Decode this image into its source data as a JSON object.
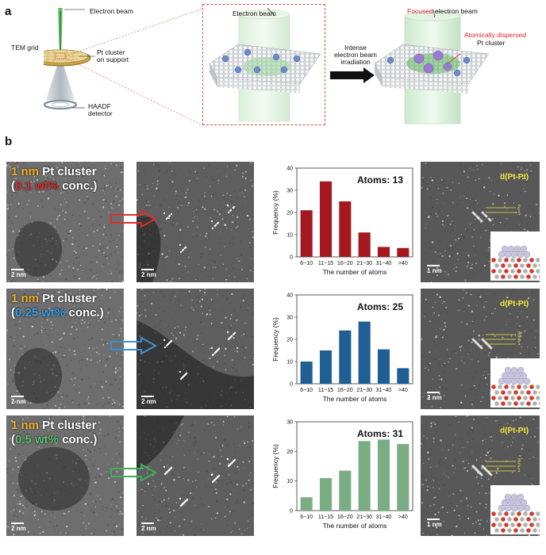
{
  "panel_a": {
    "letter": "a",
    "labels": {
      "electron_beam_left": "Electron beam",
      "tem_grid": "TEM grid",
      "pt_cluster_support": "Pt cluster\non support",
      "haadf_detector": "HAADF\ndetector",
      "electron_beam_mid": "Electron beam",
      "irradiation": "Intense\nelectron beam\nirradiation",
      "focused_word": "Focused",
      "focused_rest": " electron beam",
      "atomically_dispersed": "Atomically dispersed",
      "pt_cluster_right": "Pt cluster"
    },
    "colors": {
      "red_text": "#e0252b",
      "beam_green": "#5fb85f"
    }
  },
  "panel_b": {
    "letter": "b",
    "rows": [
      {
        "size_text": "1 nm",
        "cluster_word": " Pt cluster",
        "conc_open": "(",
        "conc_value": "0.1 wt%",
        "conc_close": " conc.)",
        "conc_color": "#d8302e",
        "arrow_color": "#d8302e",
        "scale_left": "2 nm",
        "scale_mid": "2 nm",
        "scale_right": "1 nm",
        "dpt_label": "d(Pt-Pt)",
        "layers": [
          "2",
          "1"
        ],
        "bar_color": "#a41820"
      },
      {
        "size_text": "1 nm",
        "cluster_word": " Pt cluster",
        "conc_open": "(",
        "conc_value": "0.25 wt%",
        "conc_close": " conc.)",
        "conc_color": "#3a9fe0",
        "arrow_color": "#3a8fd8",
        "scale_left": "2 nm",
        "scale_mid": "2 nm",
        "scale_right": "2 nm",
        "dpt_label": "d(Pt-Pt)",
        "layers": [
          "3",
          "2",
          "1"
        ],
        "bar_color": "#1f5f93"
      },
      {
        "size_text": "1 nm",
        "cluster_word": " Pt cluster",
        "conc_open": "(",
        "conc_value": "0.5 wt%",
        "conc_close": " conc.)",
        "conc_color": "#5cc070",
        "arrow_color": "#3fae5a",
        "scale_left": "2 nm",
        "scale_mid": "2 nm",
        "scale_right": "1 nm",
        "dpt_label": "d(Pt-Pt)",
        "layers": [
          "3",
          "2",
          "1"
        ],
        "bar_color": "#7aad84"
      }
    ],
    "size_color": "#f2b02a"
  },
  "chart_data": [
    {
      "type": "bar",
      "title": "Atoms: 13",
      "categories": [
        "6~10",
        "11~15",
        "16~20",
        "21~30",
        "31~40",
        ">40"
      ],
      "values": [
        21,
        34,
        25,
        11,
        4.5,
        4
      ],
      "xlabel": "The number of atoms",
      "ylabel": "Frequency (%)",
      "ylim": [
        0,
        40
      ],
      "yticks": [
        0,
        10,
        20,
        30,
        40
      ]
    },
    {
      "type": "bar",
      "title": "Atoms: 25",
      "categories": [
        "6~10",
        "11~15",
        "16~20",
        "21~30",
        "31~40",
        ">40"
      ],
      "values": [
        10,
        15,
        24,
        28,
        15.5,
        7
      ],
      "xlabel": "The number of atoms",
      "ylabel": "Frequency (%)",
      "ylim": [
        0,
        40
      ],
      "yticks": [
        0,
        10,
        20,
        30,
        40
      ]
    },
    {
      "type": "bar",
      "title": "Atoms: 31",
      "categories": [
        "6~10",
        "11~15",
        "16~20",
        "21~30",
        "31~40",
        ">40"
      ],
      "values": [
        4.5,
        11,
        13.5,
        23.5,
        24,
        22.5
      ],
      "xlabel": "The number of atoms",
      "ylabel": "Frequency (%)",
      "ylim": [
        0,
        30
      ],
      "yticks": [
        0,
        10,
        20,
        30
      ]
    }
  ]
}
